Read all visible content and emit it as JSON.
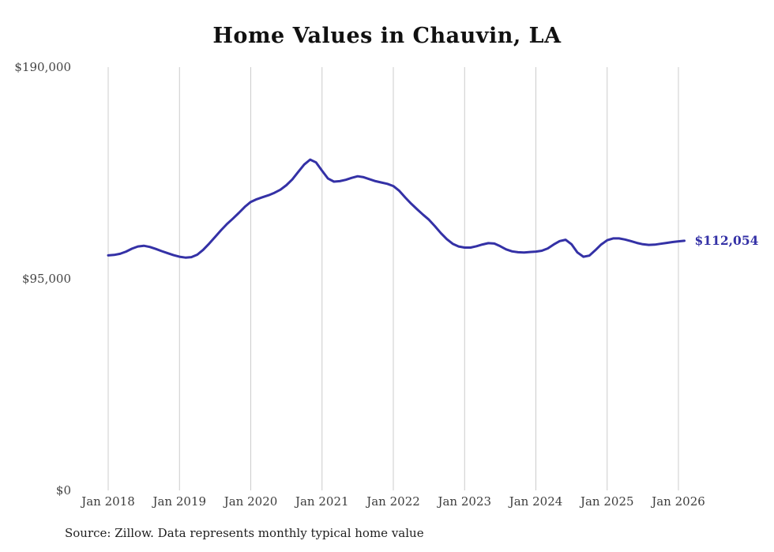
{
  "page": {
    "title": "Home Values in Chauvin, LA",
    "source_note": "Source: Zillow. Data represents monthly typical home value"
  },
  "chart_data": {
    "type": "line",
    "title": "Home Values in Chauvin, LA",
    "series_name": "Monthly typical home value",
    "frequency": "monthly",
    "start": {
      "year": 2018,
      "month": 1
    },
    "values": [
      105500,
      105700,
      106200,
      107200,
      108500,
      109500,
      109800,
      109300,
      108400,
      107400,
      106500,
      105600,
      104900,
      104500,
      104700,
      105800,
      108000,
      110800,
      113800,
      116800,
      119600,
      122000,
      124600,
      127300,
      129500,
      130700,
      131600,
      132500,
      133600,
      135000,
      137000,
      139600,
      143000,
      146300,
      148500,
      147200,
      143500,
      140000,
      138600,
      138800,
      139400,
      140300,
      141000,
      140600,
      139700,
      138800,
      138200,
      137600,
      136600,
      134500,
      131500,
      128700,
      126200,
      123800,
      121500,
      118600,
      115500,
      112800,
      110700,
      109500,
      109000,
      109000,
      109600,
      110400,
      111000,
      110800,
      109600,
      108200,
      107300,
      106900,
      106800,
      107000,
      107200,
      107600,
      108600,
      110400,
      111900,
      112500,
      110500,
      106800,
      104900,
      105400,
      107800,
      110400,
      112300,
      113100,
      113100,
      112600,
      111900,
      111100,
      110500,
      110200,
      110300,
      110700,
      111100,
      111500,
      111800,
      112054
    ],
    "end_value": 112054,
    "end_label": "$112,054",
    "ylim": [
      0,
      190000
    ],
    "yticks": [
      0,
      95000,
      190000
    ],
    "ytick_labels": [
      "$0",
      "$95,000",
      "$190,000"
    ],
    "xtick_years": [
      2018,
      2019,
      2020,
      2021,
      2022,
      2023,
      2024,
      2025,
      2026
    ],
    "xtick_labels": [
      "Jan 2018",
      "Jan 2019",
      "Jan 2020",
      "Jan 2021",
      "Jan 2022",
      "Jan 2023",
      "Jan 2024",
      "Jan 2025",
      "Jan 2026"
    ],
    "grid": "vertical-only",
    "legend": "none",
    "line_color": "#3431a6",
    "grid_color": "#cccccc",
    "tick_label_color": "#444444"
  }
}
